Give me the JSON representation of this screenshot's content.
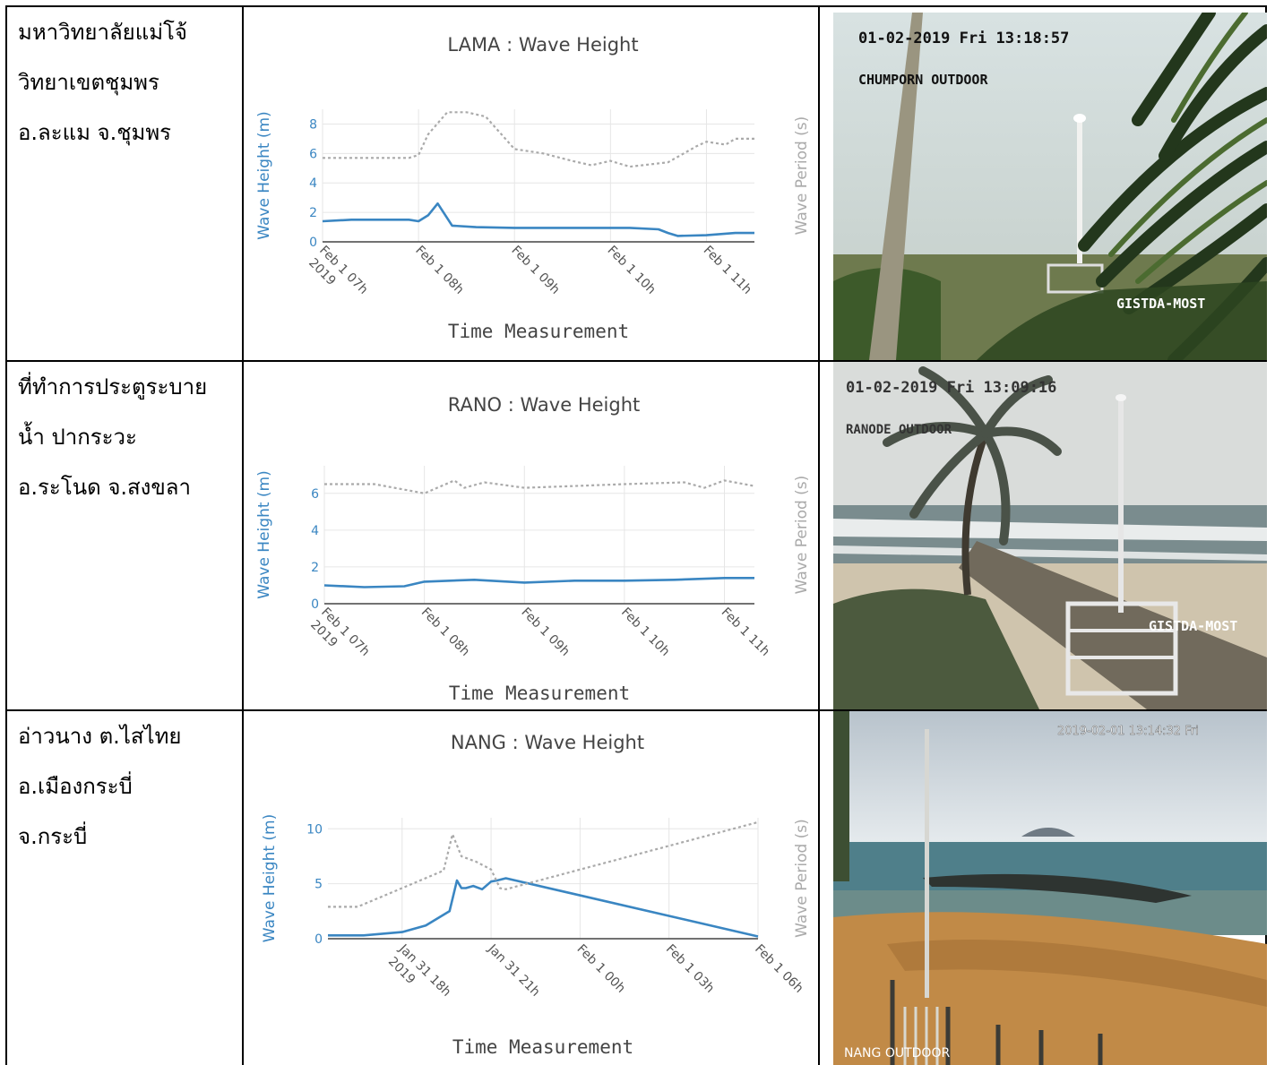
{
  "rows": [
    {
      "location": [
        "มหาวิทยาลัยแม่โจ้",
        "วิทยาเขตชุมพร",
        "อ.ละแม จ.ชุมพร"
      ],
      "camera": {
        "timestamp": "01-02-2019 Fri 13:18:57",
        "label": "CHUMPORN OUTDOOR",
        "watermark": "GISTDA-MOST"
      }
    },
    {
      "location": [
        "ที่ทำการประตูระบาย",
        "น้ำ ปากระวะ",
        "อ.ระโนด จ.สงขลา"
      ],
      "camera": {
        "timestamp": "01-02-2019 Fri 13:09:16",
        "label": "RANODE OUTDOOR",
        "watermark": "GISTDA-MOST"
      }
    },
    {
      "location": [
        "อ่าวนาง ต.ไสไทย",
        "อ.เมืองกระบี่",
        "จ.กระบี่"
      ],
      "camera": {
        "timestamp": "2019-02-01 13:14:32 Fri",
        "label": "NANG OUTDOOR",
        "watermark": ""
      }
    }
  ],
  "chart_data": [
    {
      "type": "line",
      "title": "LAMA : Wave Height",
      "xlabel": "Time Measurement",
      "ylabel": "Wave Height (m)",
      "y2label": "Wave Period (s)",
      "xlim": [
        7.0,
        11.5
      ],
      "ylim": [
        0,
        9
      ],
      "yticks": [
        0,
        2,
        4,
        6,
        8
      ],
      "xticks": [
        {
          "x": 7.0,
          "lines": [
            "Feb 1 07h",
            "2019"
          ]
        },
        {
          "x": 8.0,
          "lines": [
            "Feb 1 08h"
          ]
        },
        {
          "x": 9.0,
          "lines": [
            "Feb 1 09h"
          ]
        },
        {
          "x": 10.0,
          "lines": [
            "Feb 1 10h"
          ]
        },
        {
          "x": 11.0,
          "lines": [
            "Feb 1 11h"
          ]
        }
      ],
      "series": [
        {
          "name": "Wave Height (m)",
          "style": "solid",
          "color": "#3a86c2",
          "x": [
            7.0,
            7.3,
            7.6,
            7.9,
            8.0,
            8.1,
            8.2,
            8.35,
            8.6,
            9.0,
            9.4,
            9.8,
            10.2,
            10.5,
            10.6,
            10.7,
            11.0,
            11.3,
            11.5
          ],
          "y": [
            1.4,
            1.5,
            1.5,
            1.5,
            1.4,
            1.8,
            2.6,
            1.1,
            1.0,
            0.95,
            0.95,
            0.95,
            0.95,
            0.85,
            0.6,
            0.4,
            0.45,
            0.6,
            0.6
          ]
        },
        {
          "name": "Wave Period (s)",
          "style": "dotted",
          "color": "#aaaaaa",
          "x": [
            7.0,
            7.5,
            7.9,
            8.0,
            8.1,
            8.3,
            8.5,
            8.7,
            9.0,
            9.3,
            9.6,
            9.8,
            10.0,
            10.2,
            10.6,
            10.9,
            11.0,
            11.2,
            11.3,
            11.5
          ],
          "y": [
            5.7,
            5.7,
            5.7,
            5.9,
            7.3,
            8.8,
            8.8,
            8.5,
            6.3,
            6.0,
            5.5,
            5.2,
            5.5,
            5.1,
            5.4,
            6.5,
            6.8,
            6.6,
            7.0,
            7.0
          ]
        }
      ]
    },
    {
      "type": "line",
      "title": "RANO : Wave Height",
      "xlabel": "Time Measurement",
      "ylabel": "Wave Height (m)",
      "y2label": "Wave Period (s)",
      "xlim": [
        7.0,
        11.3
      ],
      "ylim": [
        0,
        7.5
      ],
      "yticks": [
        0,
        2,
        4,
        6
      ],
      "xticks": [
        {
          "x": 7.0,
          "lines": [
            "Feb 1 07h",
            "2019"
          ]
        },
        {
          "x": 8.0,
          "lines": [
            "Feb 1 08h"
          ]
        },
        {
          "x": 9.0,
          "lines": [
            "Feb 1 09h"
          ]
        },
        {
          "x": 10.0,
          "lines": [
            "Feb 1 10h"
          ]
        },
        {
          "x": 11.0,
          "lines": [
            "Feb 1 11h"
          ]
        }
      ],
      "series": [
        {
          "name": "Wave Height (m)",
          "style": "solid",
          "color": "#3a86c2",
          "x": [
            7.0,
            7.4,
            7.8,
            8.0,
            8.5,
            9.0,
            9.5,
            10.0,
            10.5,
            11.0,
            11.3
          ],
          "y": [
            1.0,
            0.9,
            0.95,
            1.2,
            1.3,
            1.15,
            1.25,
            1.25,
            1.3,
            1.4,
            1.4
          ],
          "note": ""
        },
        {
          "name": "Wave Period (s)",
          "style": "dotted",
          "color": "#aaaaaa",
          "x": [
            7.0,
            7.5,
            7.9,
            8.0,
            8.3,
            8.4,
            8.6,
            9.0,
            9.5,
            10.0,
            10.6,
            10.8,
            11.0,
            11.3
          ],
          "y": [
            6.5,
            6.5,
            6.1,
            6.0,
            6.7,
            6.3,
            6.6,
            6.3,
            6.4,
            6.5,
            6.6,
            6.3,
            6.7,
            6.4
          ]
        }
      ]
    },
    {
      "type": "line",
      "title": "NANG : Wave Height",
      "xlabel": "Time Measurement",
      "ylabel": "Wave Height (m)",
      "y2label": "Wave Period (s)",
      "xlim": [
        -8.5,
        6.0
      ],
      "ylim": [
        0,
        11
      ],
      "yticks": [
        0,
        5,
        10
      ],
      "xticks": [
        {
          "x": -6.0,
          "lines": [
            "Jan 31 18h",
            "2019"
          ]
        },
        {
          "x": -3.0,
          "lines": [
            "Jan 31 21h"
          ]
        },
        {
          "x": 0.0,
          "lines": [
            "Feb 1 00h"
          ]
        },
        {
          "x": 3.0,
          "lines": [
            "Feb 1 03h"
          ]
        },
        {
          "x": 6.0,
          "lines": [
            "Feb 1 06h"
          ]
        }
      ],
      "series": [
        {
          "name": "Wave Height (m)",
          "style": "solid",
          "color": "#3a86c2",
          "x": [
            -8.5,
            -7.3,
            -6.0,
            -5.2,
            -4.4,
            -4.15,
            -4.0,
            -3.85,
            -3.6,
            -3.3,
            -3.0,
            -2.8,
            -2.5,
            6.0
          ],
          "y": [
            0.3,
            0.3,
            0.6,
            1.2,
            2.5,
            5.3,
            4.6,
            4.6,
            4.8,
            4.5,
            5.2,
            5.3,
            5.5,
            0.2
          ]
        },
        {
          "name": "Wave Period (s)",
          "style": "dotted",
          "color": "#aaaaaa",
          "x": [
            -8.5,
            -7.5,
            -6.0,
            -4.6,
            -4.3,
            -4.0,
            -3.5,
            -3.0,
            -2.7,
            -2.5,
            6.0
          ],
          "y": [
            2.9,
            2.9,
            4.6,
            6.2,
            9.5,
            7.5,
            7.0,
            6.3,
            4.6,
            4.5,
            10.6
          ]
        }
      ]
    }
  ]
}
